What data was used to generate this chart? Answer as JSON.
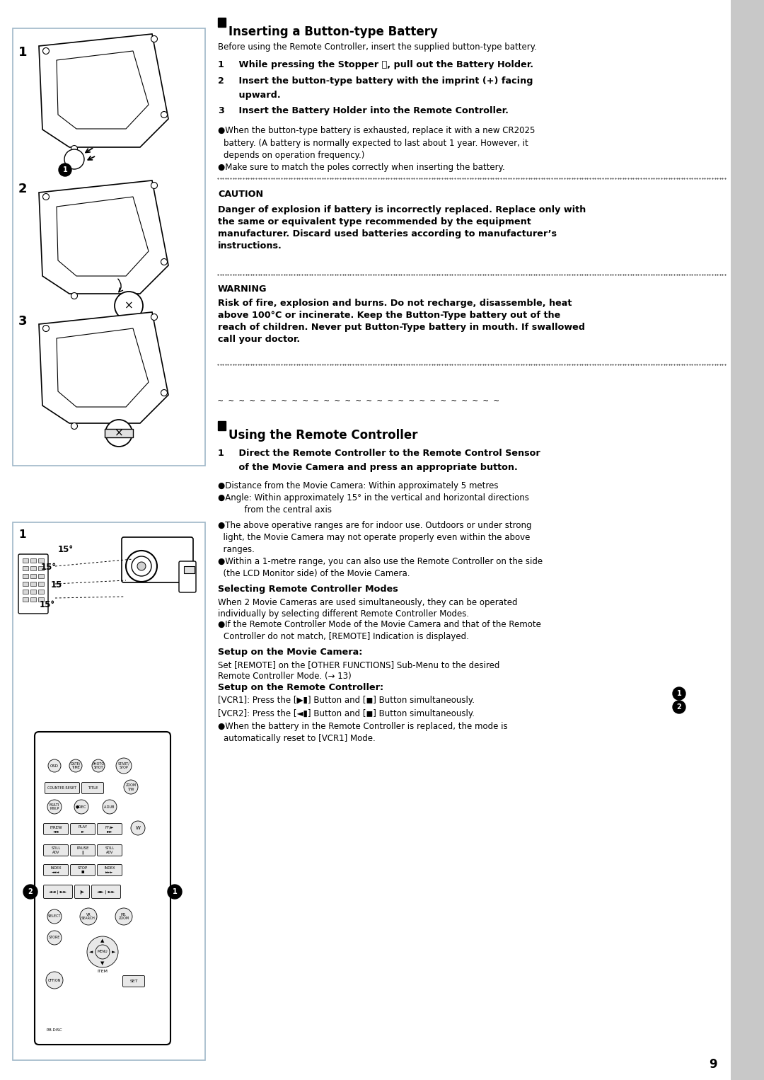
{
  "bg_color": "#ffffff",
  "right_sidebar_color": "#c8c8c8",
  "left_box_border": "#a0b8c8",
  "page_number": "9",
  "section1_title": "■Inserting a Button-type Battery",
  "section1_intro": "Before using the Remote Controller, insert the supplied button-type battery.",
  "caution_title": "CAUTION",
  "caution_text": "Danger of explosion if battery is incorrectly replaced. Replace only with\nthe same or equivalent type recommended by the equipment\nmanufacturer. Discard used batteries according to manufacturer’s\ninstructions.",
  "warning_title": "WARNING",
  "warning_text": "Risk of fire, explosion and burns. Do not recharge, disassemble, heat\nabove 100°C or incinerate. Keep the Button-Type battery out of the\nreach of children. Never put Button-Type battery in mouth. If swallowed\ncall your doctor.",
  "section2_title": "■Using the Remote Controller",
  "select_modes_title": "Selecting Remote Controller Modes",
  "select_modes_text": "When 2 Movie Cameras are used simultaneously, they can be operated\nindividually by selecting different Remote Controller Modes.",
  "setup_camera_title": "Setup on the Movie Camera:",
  "setup_camera_text": "Set [REMOTE] on the [OTHER FUNCTIONS] Sub-Menu to the desired\nRemote Controller Mode. (→ 13)",
  "setup_remote_title": "Setup on the Remote Controller:"
}
